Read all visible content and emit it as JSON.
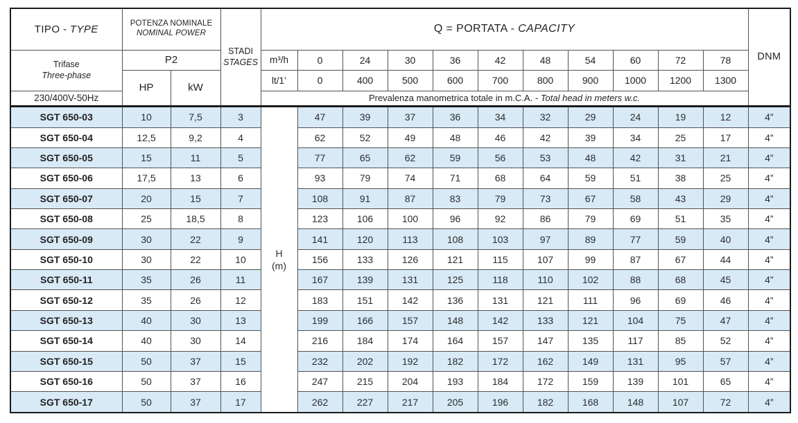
{
  "header": {
    "tipo": {
      "it": "TIPO - ",
      "en": "TYPE"
    },
    "potenza": {
      "it": "POTENZA NOMINALE",
      "en": "NOMINAL POWER"
    },
    "p2": "P2",
    "hp": "HP",
    "kw": "kW",
    "stadi": {
      "it": "STADI",
      "en": "STAGES"
    },
    "trifase": {
      "it": "Trifase",
      "en": "Three-phase"
    },
    "voltage": "230/400V-50Hz",
    "portata": {
      "it": "Q = PORTATA - ",
      "en": "CAPACITY"
    },
    "dnm": "DNM",
    "flow_unit_m3h": "m³/h",
    "flow_unit_lt": "lt/1’",
    "flow_m3h": [
      "0",
      "24",
      "30",
      "36",
      "42",
      "48",
      "54",
      "60",
      "72",
      "78"
    ],
    "flow_lt1": [
      "0",
      "400",
      "500",
      "600",
      "700",
      "800",
      "900",
      "1000",
      "1200",
      "1300"
    ],
    "prevalenza": {
      "it": "Prevalenza manometrica totale in m.C.A. - ",
      "en": "Total head in meters w.c."
    },
    "head_col": {
      "label": "H",
      "unit": "(m)"
    }
  },
  "rows": [
    {
      "model": "SGT 650-03",
      "hp": "10",
      "kw": "7,5",
      "stages": "3",
      "heads": [
        "47",
        "39",
        "37",
        "36",
        "34",
        "32",
        "29",
        "24",
        "19",
        "12"
      ],
      "dnm": "4”"
    },
    {
      "model": "SGT 650-04",
      "hp": "12,5",
      "kw": "9,2",
      "stages": "4",
      "heads": [
        "62",
        "52",
        "49",
        "48",
        "46",
        "42",
        "39",
        "34",
        "25",
        "17"
      ],
      "dnm": "4”"
    },
    {
      "model": "SGT 650-05",
      "hp": "15",
      "kw": "11",
      "stages": "5",
      "heads": [
        "77",
        "65",
        "62",
        "59",
        "56",
        "53",
        "48",
        "42",
        "31",
        "21"
      ],
      "dnm": "4”"
    },
    {
      "model": "SGT 650-06",
      "hp": "17,5",
      "kw": "13",
      "stages": "6",
      "heads": [
        "93",
        "79",
        "74",
        "71",
        "68",
        "64",
        "59",
        "51",
        "38",
        "25"
      ],
      "dnm": "4”"
    },
    {
      "model": "SGT 650-07",
      "hp": "20",
      "kw": "15",
      "stages": "7",
      "heads": [
        "108",
        "91",
        "87",
        "83",
        "79",
        "73",
        "67",
        "58",
        "43",
        "29"
      ],
      "dnm": "4”"
    },
    {
      "model": "SGT 650-08",
      "hp": "25",
      "kw": "18,5",
      "stages": "8",
      "heads": [
        "123",
        "106",
        "100",
        "96",
        "92",
        "86",
        "79",
        "69",
        "51",
        "35"
      ],
      "dnm": "4”"
    },
    {
      "model": "SGT 650-09",
      "hp": "30",
      "kw": "22",
      "stages": "9",
      "heads": [
        "141",
        "120",
        "113",
        "108",
        "103",
        "97",
        "89",
        "77",
        "59",
        "40"
      ],
      "dnm": "4”"
    },
    {
      "model": "SGT 650-10",
      "hp": "30",
      "kw": "22",
      "stages": "10",
      "heads": [
        "156",
        "133",
        "126",
        "121",
        "115",
        "107",
        "99",
        "87",
        "67",
        "44"
      ],
      "dnm": "4”"
    },
    {
      "model": "SGT 650-11",
      "hp": "35",
      "kw": "26",
      "stages": "11",
      "heads": [
        "167",
        "139",
        "131",
        "125",
        "118",
        "110",
        "102",
        "88",
        "68",
        "45"
      ],
      "dnm": "4”"
    },
    {
      "model": "SGT 650-12",
      "hp": "35",
      "kw": "26",
      "stages": "12",
      "heads": [
        "183",
        "151",
        "142",
        "136",
        "131",
        "121",
        "111",
        "96",
        "69",
        "46"
      ],
      "dnm": "4”"
    },
    {
      "model": "SGT 650-13",
      "hp": "40",
      "kw": "30",
      "stages": "13",
      "heads": [
        "199",
        "166",
        "157",
        "148",
        "142",
        "133",
        "121",
        "104",
        "75",
        "47"
      ],
      "dnm": "4”"
    },
    {
      "model": "SGT 650-14",
      "hp": "40",
      "kw": "30",
      "stages": "14",
      "heads": [
        "216",
        "184",
        "174",
        "164",
        "157",
        "147",
        "135",
        "117",
        "85",
        "52"
      ],
      "dnm": "4”"
    },
    {
      "model": "SGT 650-15",
      "hp": "50",
      "kw": "37",
      "stages": "15",
      "heads": [
        "232",
        "202",
        "192",
        "182",
        "172",
        "162",
        "149",
        "131",
        "95",
        "57"
      ],
      "dnm": "4”"
    },
    {
      "model": "SGT 650-16",
      "hp": "50",
      "kw": "37",
      "stages": "16",
      "heads": [
        "247",
        "215",
        "204",
        "193",
        "184",
        "172",
        "159",
        "139",
        "101",
        "65"
      ],
      "dnm": "4”"
    },
    {
      "model": "SGT 650-17",
      "hp": "50",
      "kw": "37",
      "stages": "17",
      "heads": [
        "262",
        "227",
        "217",
        "205",
        "196",
        "182",
        "168",
        "148",
        "107",
        "72"
      ],
      "dnm": "4”"
    }
  ],
  "colors": {
    "stripe": "#d7eaf6",
    "border_thin": "#515254",
    "border_thick": "#1a1a1c"
  }
}
